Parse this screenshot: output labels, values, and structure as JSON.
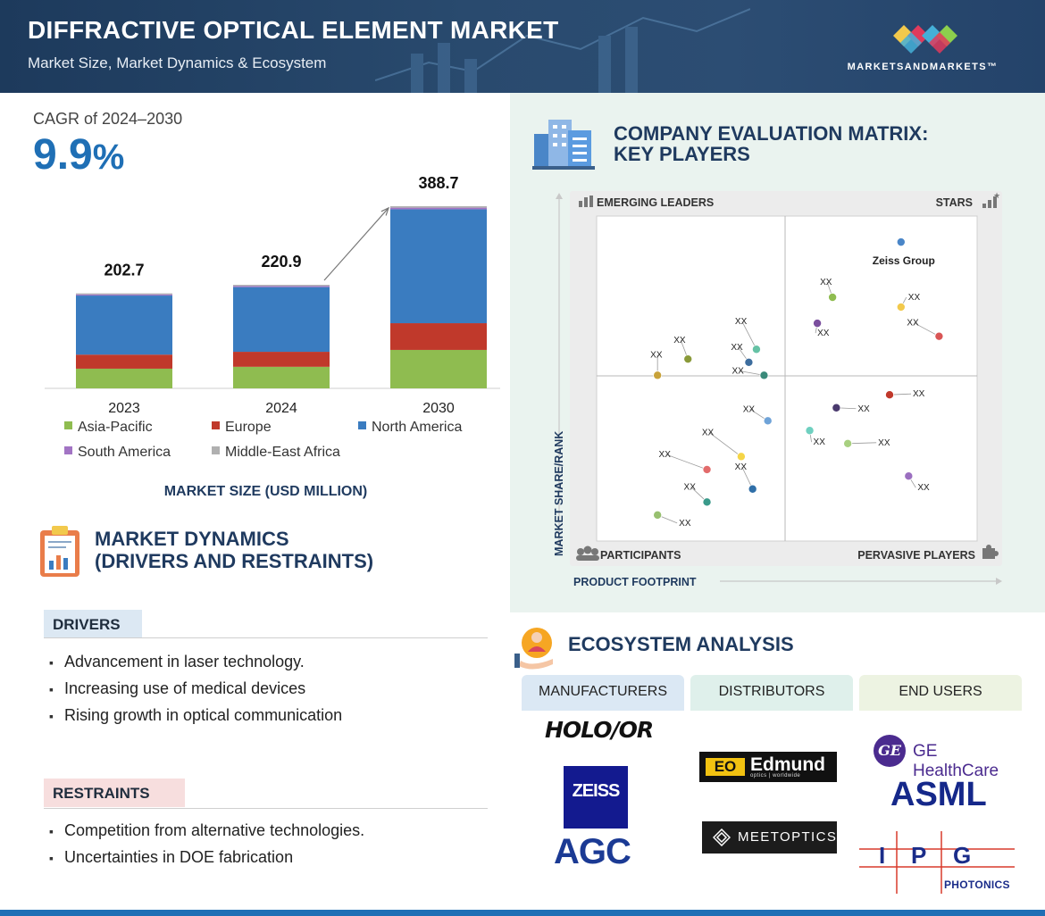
{
  "header": {
    "title": "DIFFRACTIVE OPTICAL ELEMENT MARKET",
    "subtitle": "Market Size, Market Dynamics & Ecosystem",
    "logo_text": "MARKETSANDMARKETS™"
  },
  "cagr": {
    "label": "CAGR of 2024–2030",
    "value": "9.9",
    "unit": "%"
  },
  "chart_data": {
    "type": "bar",
    "stacked": true,
    "categories": [
      "2023",
      "2024",
      "2030"
    ],
    "totals": [
      202.7,
      220.9,
      388.7
    ],
    "total_labels": [
      "202.7",
      "220.9",
      "388.7"
    ],
    "series": [
      {
        "name": "Asia-Pacific",
        "color": "#8fbc50",
        "values": [
          42,
          46,
          82
        ]
      },
      {
        "name": "Europe",
        "color": "#c0392b",
        "values": [
          30,
          32,
          57
        ]
      },
      {
        "name": "North America",
        "color": "#3a7cc0",
        "values": [
          126,
          138,
          243
        ]
      },
      {
        "name": "South America",
        "color": "#a274c4",
        "values": [
          2.5,
          2.5,
          3.5
        ]
      },
      {
        "name": "Middle-East Africa",
        "color": "#b0b0b0",
        "values": [
          2.2,
          2.4,
          3.2
        ]
      }
    ],
    "title": "",
    "xlabel": "MARKET SIZE (USD MILLION)",
    "ylabel": "",
    "ylim": [
      0,
      400
    ],
    "grid": false,
    "legend": "bottom"
  },
  "market_dynamics": {
    "title_line1": "MARKET DYNAMICS",
    "title_line2": "(DRIVERS AND RESTRAINTS)",
    "drivers_label": "DRIVERS",
    "drivers": [
      "Advancement in laser technology.",
      "Increasing use of medical devices",
      "Rising growth in optical communication"
    ],
    "restraints_label": "RESTRAINTS",
    "restraints": [
      "Competition from alternative technologies.",
      "Uncertainties in DOE fabrication"
    ]
  },
  "matrix": {
    "title_line1": "COMPANY EVALUATION MATRIX:",
    "title_line2": "KEY PLAYERS",
    "quadrants": {
      "top_left": "EMERGING LEADERS",
      "top_right": "STARS",
      "bottom_left": "PARTICIPANTS",
      "bottom_right": "PERVASIVE PLAYERS"
    },
    "x_axis": "PRODUCT FOOTPRINT",
    "y_axis": "MARKET SHARE/RANK",
    "points": [
      {
        "label": "Zeiss Group",
        "color": "#4a86c8",
        "fp": 0.8,
        "ms": 0.92
      },
      {
        "label": "XX",
        "color": "#8fbc50",
        "fp": 0.62,
        "ms": 0.75
      },
      {
        "label": "XX",
        "color": "#f2c94c",
        "fp": 0.8,
        "ms": 0.72
      },
      {
        "label": "XX",
        "color": "#7b4f9e",
        "fp": 0.58,
        "ms": 0.67
      },
      {
        "label": "XX",
        "color": "#d95555",
        "fp": 0.9,
        "ms": 0.63
      },
      {
        "label": "XX",
        "color": "#66c2a5",
        "fp": 0.42,
        "ms": 0.59
      },
      {
        "label": "XX",
        "color": "#3d6d9e",
        "fp": 0.4,
        "ms": 0.55
      },
      {
        "label": "XX",
        "color": "#8a9a3a",
        "fp": 0.24,
        "ms": 0.56
      },
      {
        "label": "XX",
        "color": "#3a8a7a",
        "fp": 0.44,
        "ms": 0.51
      },
      {
        "label": "XX",
        "color": "#c8a23a",
        "fp": 0.16,
        "ms": 0.51
      },
      {
        "label": "XX",
        "color": "#c0392b",
        "fp": 0.77,
        "ms": 0.45
      },
      {
        "label": "XX",
        "color": "#4a3a6e",
        "fp": 0.63,
        "ms": 0.41
      },
      {
        "label": "XX",
        "color": "#6fa3d8",
        "fp": 0.45,
        "ms": 0.37
      },
      {
        "label": "XX",
        "color": "#6fd0c0",
        "fp": 0.56,
        "ms": 0.34
      },
      {
        "label": "XX",
        "color": "#a8d080",
        "fp": 0.66,
        "ms": 0.3
      },
      {
        "label": "XX",
        "color": "#f5d547",
        "fp": 0.38,
        "ms": 0.26
      },
      {
        "label": "XX",
        "color": "#e26b6b",
        "fp": 0.29,
        "ms": 0.22
      },
      {
        "label": "XX",
        "color": "#9b6fc0",
        "fp": 0.82,
        "ms": 0.2
      },
      {
        "label": "XX",
        "color": "#2f6fa8",
        "fp": 0.41,
        "ms": 0.16
      },
      {
        "label": "XX",
        "color": "#3a9a8a",
        "fp": 0.29,
        "ms": 0.12
      },
      {
        "label": "XX",
        "color": "#98c070",
        "fp": 0.16,
        "ms": 0.08
      }
    ]
  },
  "ecosystem": {
    "title": "ECOSYSTEM ANALYSIS",
    "headers": [
      "MANUFACTURERS",
      "DISTRIBUTORS",
      "END USERS"
    ],
    "brands": {
      "holo": "HOLO/OR",
      "zeiss": "ZEISS",
      "agc": "AGC",
      "edmund": "Edmund",
      "edmund_sub": "optics | worldwide",
      "meet": "MEETOPTICS",
      "ge": "GE HealthCare",
      "asml": "ASML",
      "ipg_i": "I",
      "ipg_p": "P",
      "ipg_g": "G",
      "ipg_sub": "PHOTONICS"
    }
  }
}
